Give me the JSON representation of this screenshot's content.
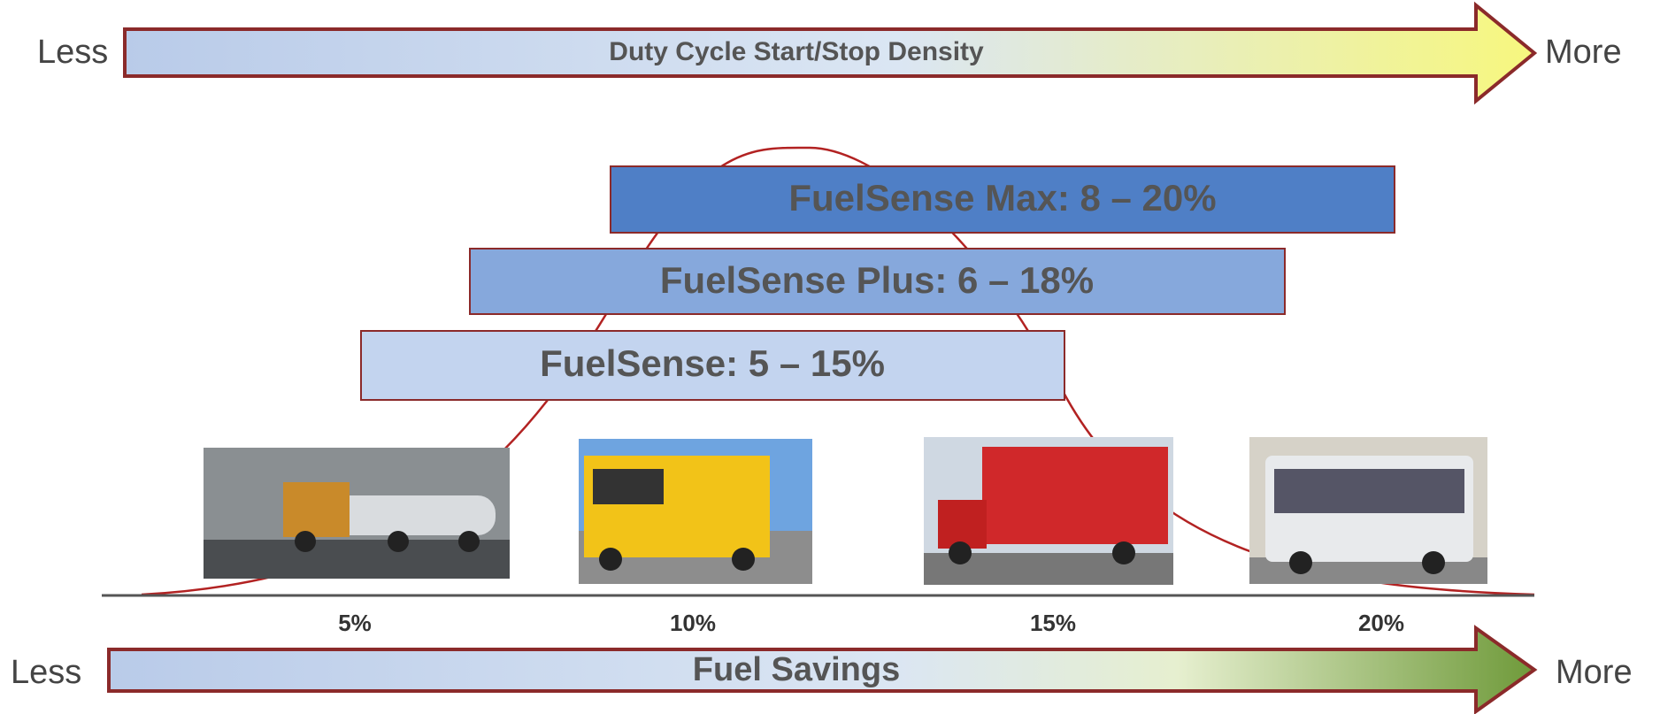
{
  "top_arrow": {
    "left": "Less",
    "label": "Duty Cycle Start/Stop Density",
    "right": "More"
  },
  "bands": [
    {
      "label": "FuelSense Max: 8 – 20%"
    },
    {
      "label": "FuelSense Plus: 6 – 18%"
    },
    {
      "label": "FuelSense: 5 – 15%"
    }
  ],
  "axis_labels": [
    "5%",
    "10%",
    "15%",
    "20%"
  ],
  "bottom_arrow": {
    "left": "Less",
    "label": "Fuel Savings",
    "right": "More"
  }
}
